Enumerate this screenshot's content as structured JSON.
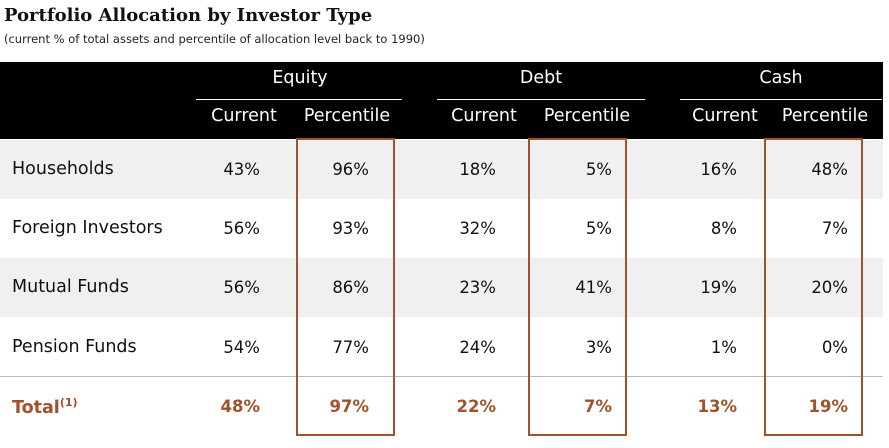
{
  "title": "Portfolio Allocation by Investor Type",
  "subtitle": "(current % of total assets and percentile of allocation level back to 1990)",
  "chart_data": {
    "type": "table",
    "groups": [
      {
        "name": "Equity",
        "columns": [
          "Current",
          "Percentile"
        ]
      },
      {
        "name": "Debt",
        "columns": [
          "Current",
          "Percentile"
        ]
      },
      {
        "name": "Cash",
        "columns": [
          "Current",
          "Percentile"
        ]
      }
    ],
    "rows": [
      {
        "label": "Households",
        "values": [
          "43%",
          "96%",
          "18%",
          "5%",
          "16%",
          "48%"
        ]
      },
      {
        "label": "Foreign Investors",
        "values": [
          "56%",
          "93%",
          "32%",
          "5%",
          "8%",
          "7%"
        ]
      },
      {
        "label": "Mutual Funds",
        "values": [
          "56%",
          "86%",
          "23%",
          "41%",
          "19%",
          "20%"
        ]
      },
      {
        "label": "Pension Funds",
        "values": [
          "54%",
          "77%",
          "24%",
          "3%",
          "1%",
          "0%"
        ]
      }
    ],
    "total": {
      "label": "Total",
      "footnote": "(1)",
      "values": [
        "48%",
        "97%",
        "22%",
        "7%",
        "13%",
        "19%"
      ]
    },
    "highlighted_columns": [
      "Percentile"
    ],
    "colors": {
      "header_bg": "#000000",
      "highlight": "#a0522d",
      "shaded_row": "#f0f0f0"
    }
  }
}
